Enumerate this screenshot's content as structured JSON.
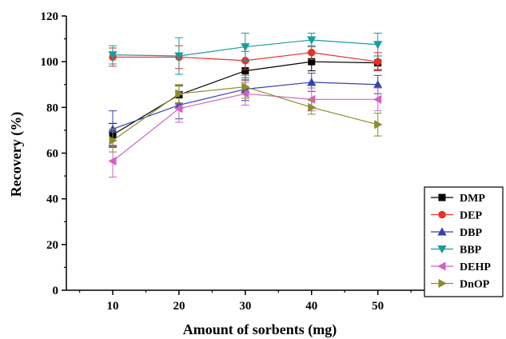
{
  "chart_data": {
    "type": "line",
    "title": "",
    "xlabel": "Amount of sorbents (mg)",
    "ylabel": "Recovery (%)",
    "xlim": [
      3,
      58
    ],
    "ylim": [
      0,
      120
    ],
    "x": [
      10,
      20,
      30,
      40,
      50
    ],
    "xticks": [
      10,
      20,
      30,
      40,
      50
    ],
    "yticks": [
      0,
      20,
      40,
      60,
      80,
      100,
      120
    ],
    "grid": false,
    "legend_position": "right",
    "error_bars": true,
    "series": [
      {
        "name": "DMP",
        "color": "#000000",
        "marker": "square",
        "values": [
          68,
          85.5,
          96,
          100,
          99.5
        ],
        "errors": [
          5,
          4,
          4,
          4,
          3
        ]
      },
      {
        "name": "DEP",
        "color": "#e8302a",
        "marker": "circle",
        "values": [
          102,
          102,
          100.5,
          104,
          100
        ],
        "errors": [
          4,
          5,
          4,
          3,
          4
        ]
      },
      {
        "name": "DBP",
        "color": "#3344aa",
        "marker": "triangle-up",
        "values": [
          70.5,
          81,
          88,
          91,
          90
        ],
        "errors": [
          8,
          6,
          5,
          4,
          4
        ]
      },
      {
        "name": "BBP",
        "color": "#1a9c9c",
        "marker": "triangle-down",
        "values": [
          103,
          102.5,
          106.5,
          109.5,
          107.5
        ],
        "errors": [
          4,
          8,
          6,
          3,
          5
        ]
      },
      {
        "name": "DEHP",
        "color": "#d462c2",
        "marker": "triangle-left",
        "values": [
          56.5,
          79.5,
          86,
          83.5,
          83.5
        ],
        "errors": [
          7,
          6,
          5,
          5,
          5
        ]
      },
      {
        "name": "DnOP",
        "color": "#8c8c2a",
        "marker": "triangle-right",
        "values": [
          65.5,
          86,
          89,
          80,
          72.5
        ],
        "errors": [
          5,
          4,
          5,
          3,
          5
        ]
      }
    ]
  }
}
